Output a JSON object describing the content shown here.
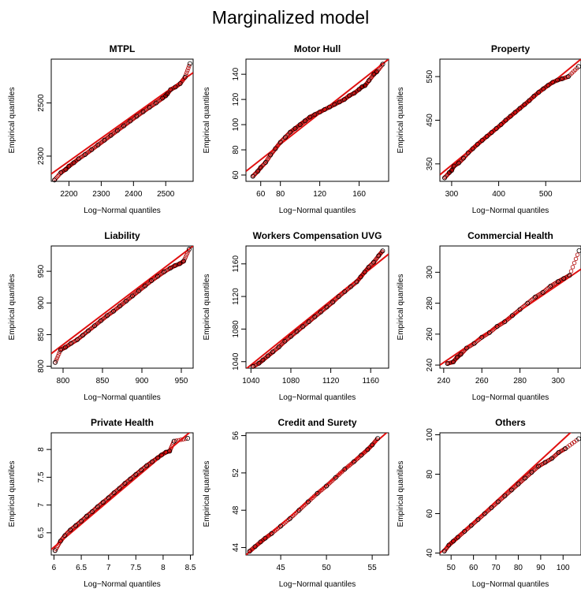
{
  "figure": {
    "title": "Marginalized model"
  },
  "chart_data": [
    {
      "type": "scatter",
      "title": "MTPL",
      "xlabel": "Log−Normal quantiles",
      "ylabel": "Empirical quantiles",
      "xlim": [
        2145,
        2585
      ],
      "ylim": [
        2205,
        2665
      ],
      "xticks": [
        2200,
        2300,
        2400,
        2500
      ],
      "yticks": [
        2300,
        2500
      ],
      "reference_line": [
        [
          2145,
          2233
        ],
        [
          2585,
          2614
        ]
      ],
      "points": [
        [
          2155,
          2210
        ],
        [
          2175,
          2238
        ],
        [
          2190,
          2250
        ],
        [
          2200,
          2262
        ],
        [
          2215,
          2275
        ],
        [
          2230,
          2290
        ],
        [
          2250,
          2306
        ],
        [
          2270,
          2324
        ],
        [
          2290,
          2342
        ],
        [
          2310,
          2360
        ],
        [
          2330,
          2378
        ],
        [
          2350,
          2396
        ],
        [
          2370,
          2414
        ],
        [
          2390,
          2432
        ],
        [
          2410,
          2450
        ],
        [
          2430,
          2467
        ],
        [
          2450,
          2484
        ],
        [
          2470,
          2500
        ],
        [
          2490,
          2518
        ],
        [
          2500,
          2527
        ],
        [
          2505,
          2534
        ],
        [
          2515,
          2550
        ],
        [
          2530,
          2560
        ],
        [
          2545,
          2573
        ],
        [
          2560,
          2597
        ],
        [
          2575,
          2648
        ]
      ]
    },
    {
      "type": "scatter",
      "title": "Motor Hull",
      "xlabel": "Log−Normal quantiles",
      "ylabel": "Empirical quantiles",
      "xlim": [
        45,
        190
      ],
      "ylim": [
        55,
        152
      ],
      "xticks": [
        60,
        80,
        120,
        160
      ],
      "yticks": [
        60,
        80,
        100,
        120,
        140
      ],
      "reference_line": [
        [
          45,
          63
        ],
        [
          190,
          152
        ]
      ],
      "points": [
        [
          52,
          59
        ],
        [
          57,
          63
        ],
        [
          60,
          66
        ],
        [
          65,
          70
        ],
        [
          70,
          76
        ],
        [
          75,
          81
        ],
        [
          80,
          86
        ],
        [
          85,
          90
        ],
        [
          90,
          94
        ],
        [
          95,
          97
        ],
        [
          100,
          100
        ],
        [
          105,
          103
        ],
        [
          110,
          106
        ],
        [
          115,
          108
        ],
        [
          120,
          110
        ],
        [
          125,
          112
        ],
        [
          130,
          114
        ],
        [
          135,
          116
        ],
        [
          140,
          118
        ],
        [
          145,
          120
        ],
        [
          150,
          123
        ],
        [
          155,
          125
        ],
        [
          160,
          128
        ],
        [
          163,
          130
        ],
        [
          166,
          131
        ],
        [
          170,
          135
        ],
        [
          175,
          140
        ],
        [
          178,
          142
        ],
        [
          184,
          148
        ]
      ]
    },
    {
      "type": "scatter",
      "title": "Property",
      "xlabel": "Log−Normal quantiles",
      "ylabel": "Empirical quantiles",
      "xlim": [
        275,
        575
      ],
      "ylim": [
        310,
        590
      ],
      "xticks": [
        300,
        400,
        500
      ],
      "yticks": [
        350,
        450,
        550
      ],
      "reference_line": [
        [
          275,
          325
        ],
        [
          575,
          590
        ]
      ],
      "points": [
        [
          285,
          318
        ],
        [
          295,
          330
        ],
        [
          300,
          335
        ],
        [
          305,
          345
        ],
        [
          315,
          352
        ],
        [
          325,
          363
        ],
        [
          335,
          375
        ],
        [
          345,
          385
        ],
        [
          355,
          395
        ],
        [
          365,
          404
        ],
        [
          375,
          413
        ],
        [
          385,
          422
        ],
        [
          395,
          431
        ],
        [
          405,
          440
        ],
        [
          415,
          450
        ],
        [
          425,
          459
        ],
        [
          435,
          468
        ],
        [
          445,
          477
        ],
        [
          455,
          486
        ],
        [
          465,
          495
        ],
        [
          475,
          505
        ],
        [
          485,
          514
        ],
        [
          495,
          522
        ],
        [
          505,
          530
        ],
        [
          515,
          537
        ],
        [
          525,
          542
        ],
        [
          535,
          545
        ],
        [
          548,
          550
        ],
        [
          570,
          573
        ]
      ]
    },
    {
      "type": "scatter",
      "title": "Liability",
      "xlabel": "Log−Normal quantiles",
      "ylabel": "Empirical quantiles",
      "xlim": [
        785,
        965
      ],
      "ylim": [
        797,
        990
      ],
      "xticks": [
        800,
        850,
        900,
        950
      ],
      "yticks": [
        800,
        850,
        900,
        950
      ],
      "reference_line": [
        [
          785,
          820
        ],
        [
          965,
          990
        ]
      ],
      "points": [
        [
          790,
          806
        ],
        [
          797,
          826
        ],
        [
          803,
          830
        ],
        [
          810,
          836
        ],
        [
          818,
          842
        ],
        [
          825,
          849
        ],
        [
          832,
          856
        ],
        [
          840,
          864
        ],
        [
          848,
          872
        ],
        [
          856,
          880
        ],
        [
          864,
          887
        ],
        [
          872,
          895
        ],
        [
          880,
          903
        ],
        [
          888,
          911
        ],
        [
          896,
          919
        ],
        [
          904,
          927
        ],
        [
          912,
          935
        ],
        [
          920,
          942
        ],
        [
          928,
          949
        ],
        [
          936,
          955
        ],
        [
          942,
          959
        ],
        [
          948,
          962
        ],
        [
          953,
          966
        ],
        [
          960,
          985
        ]
      ]
    },
    {
      "type": "scatter",
      "title": "Workers Compensation UVG",
      "xlabel": "Log−Normal quantiles",
      "ylabel": "Empirical quantiles",
      "xlim": [
        1035,
        1178
      ],
      "ylim": [
        1032,
        1182
      ],
      "xticks": [
        1040,
        1080,
        1120,
        1160
      ],
      "yticks": [
        1040,
        1080,
        1120,
        1160
      ],
      "reference_line": [
        [
          1035,
          1031
        ],
        [
          1178,
          1172
        ]
      ],
      "points": [
        [
          1042,
          1034
        ],
        [
          1048,
          1038
        ],
        [
          1052,
          1042
        ],
        [
          1057,
          1047
        ],
        [
          1062,
          1052
        ],
        [
          1068,
          1058
        ],
        [
          1074,
          1065
        ],
        [
          1080,
          1071
        ],
        [
          1086,
          1077
        ],
        [
          1092,
          1083
        ],
        [
          1098,
          1089
        ],
        [
          1104,
          1095
        ],
        [
          1110,
          1101
        ],
        [
          1116,
          1107
        ],
        [
          1122,
          1113
        ],
        [
          1128,
          1120
        ],
        [
          1134,
          1126
        ],
        [
          1140,
          1132
        ],
        [
          1146,
          1138
        ],
        [
          1150,
          1144
        ],
        [
          1154,
          1150
        ],
        [
          1158,
          1156
        ],
        [
          1163,
          1162
        ],
        [
          1168,
          1170
        ],
        [
          1172,
          1176
        ]
      ]
    },
    {
      "type": "scatter",
      "title": "Commercial Health",
      "xlabel": "Log−Normal quantiles",
      "ylabel": "Empirical quantiles",
      "xlim": [
        238,
        312
      ],
      "ylim": [
        238,
        317
      ],
      "xticks": [
        240,
        260,
        280,
        300
      ],
      "yticks": [
        240,
        260,
        280,
        300
      ],
      "reference_line": [
        [
          238,
          240
        ],
        [
          312,
          302
        ]
      ],
      "points": [
        [
          242,
          241
        ],
        [
          245,
          242
        ],
        [
          247,
          245
        ],
        [
          249,
          247
        ],
        [
          252,
          251
        ],
        [
          256,
          254
        ],
        [
          260,
          258
        ],
        [
          264,
          261
        ],
        [
          268,
          265
        ],
        [
          272,
          268
        ],
        [
          276,
          272
        ],
        [
          280,
          276
        ],
        [
          284,
          280
        ],
        [
          288,
          284
        ],
        [
          292,
          287
        ],
        [
          296,
          291
        ],
        [
          300,
          294
        ],
        [
          303,
          296
        ],
        [
          306,
          298
        ],
        [
          311,
          314
        ]
      ]
    },
    {
      "type": "scatter",
      "title": "Private Health",
      "xlabel": "Log−Normal quantiles",
      "ylabel": "Empirical quantiles",
      "xlim": [
        5.95,
        8.55
      ],
      "ylim": [
        6.1,
        8.3
      ],
      "xticks": [
        6.0,
        6.5,
        7.0,
        7.5,
        8.0,
        8.5
      ],
      "yticks": [
        6.5,
        7.0,
        7.5,
        8.0
      ],
      "reference_line": [
        [
          5.95,
          6.2
        ],
        [
          8.55,
          8.36
        ]
      ],
      "points": [
        [
          6.02,
          6.18
        ],
        [
          6.12,
          6.35
        ],
        [
          6.2,
          6.45
        ],
        [
          6.3,
          6.55
        ],
        [
          6.4,
          6.63
        ],
        [
          6.5,
          6.71
        ],
        [
          6.6,
          6.8
        ],
        [
          6.7,
          6.88
        ],
        [
          6.8,
          6.97
        ],
        [
          6.9,
          7.05
        ],
        [
          7.0,
          7.13
        ],
        [
          7.1,
          7.22
        ],
        [
          7.2,
          7.3
        ],
        [
          7.3,
          7.39
        ],
        [
          7.4,
          7.47
        ],
        [
          7.5,
          7.55
        ],
        [
          7.6,
          7.63
        ],
        [
          7.7,
          7.71
        ],
        [
          7.8,
          7.78
        ],
        [
          7.9,
          7.85
        ],
        [
          7.97,
          7.9
        ],
        [
          8.05,
          7.95
        ],
        [
          8.12,
          7.97
        ],
        [
          8.2,
          8.15
        ],
        [
          8.45,
          8.2
        ]
      ]
    },
    {
      "type": "scatter",
      "title": "Credit and Surety",
      "xlabel": "Log−Normal quantiles",
      "ylabel": "Empirical quantiles",
      "xlim": [
        41.2,
        56.8
      ],
      "ylim": [
        43.2,
        56.3
      ],
      "xticks": [
        45,
        50,
        55
      ],
      "yticks": [
        44,
        48,
        52,
        56
      ],
      "reference_line": [
        [
          41.2,
          43.2
        ],
        [
          56.8,
          56.5
        ]
      ],
      "points": [
        [
          41.6,
          43.6
        ],
        [
          42.2,
          44.1
        ],
        [
          42.8,
          44.6
        ],
        [
          43.3,
          45.0
        ],
        [
          44.0,
          45.5
        ],
        [
          45.0,
          46.3
        ],
        [
          46.0,
          47.1
        ],
        [
          47.0,
          48.0
        ],
        [
          48.0,
          48.9
        ],
        [
          49.0,
          49.8
        ],
        [
          50.0,
          50.6
        ],
        [
          51.0,
          51.5
        ],
        [
          52.0,
          52.4
        ],
        [
          53.0,
          53.2
        ],
        [
          53.8,
          53.9
        ],
        [
          54.5,
          54.5
        ],
        [
          55.0,
          55.0
        ],
        [
          55.6,
          55.7
        ]
      ]
    },
    {
      "type": "scatter",
      "title": "Others",
      "xlabel": "Log−Normal quantiles",
      "ylabel": "Empirical quantiles",
      "xlim": [
        45,
        108
      ],
      "ylim": [
        39,
        101
      ],
      "xticks": [
        50,
        60,
        70,
        80,
        90,
        100
      ],
      "yticks": [
        40,
        60,
        80,
        100
      ],
      "reference_line": [
        [
          45,
          40
        ],
        [
          108,
          106
        ]
      ],
      "points": [
        [
          47,
          41
        ],
        [
          49,
          44
        ],
        [
          51,
          46
        ],
        [
          53,
          48
        ],
        [
          56,
          51
        ],
        [
          59,
          54
        ],
        [
          62,
          57
        ],
        [
          65,
          60
        ],
        [
          68,
          63
        ],
        [
          71,
          66
        ],
        [
          74,
          69
        ],
        [
          77,
          72
        ],
        [
          80,
          75
        ],
        [
          83,
          78
        ],
        [
          86,
          81
        ],
        [
          89,
          84
        ],
        [
          92,
          86
        ],
        [
          95,
          88
        ],
        [
          98,
          91
        ],
        [
          101,
          93
        ],
        [
          107,
          98
        ]
      ]
    }
  ]
}
